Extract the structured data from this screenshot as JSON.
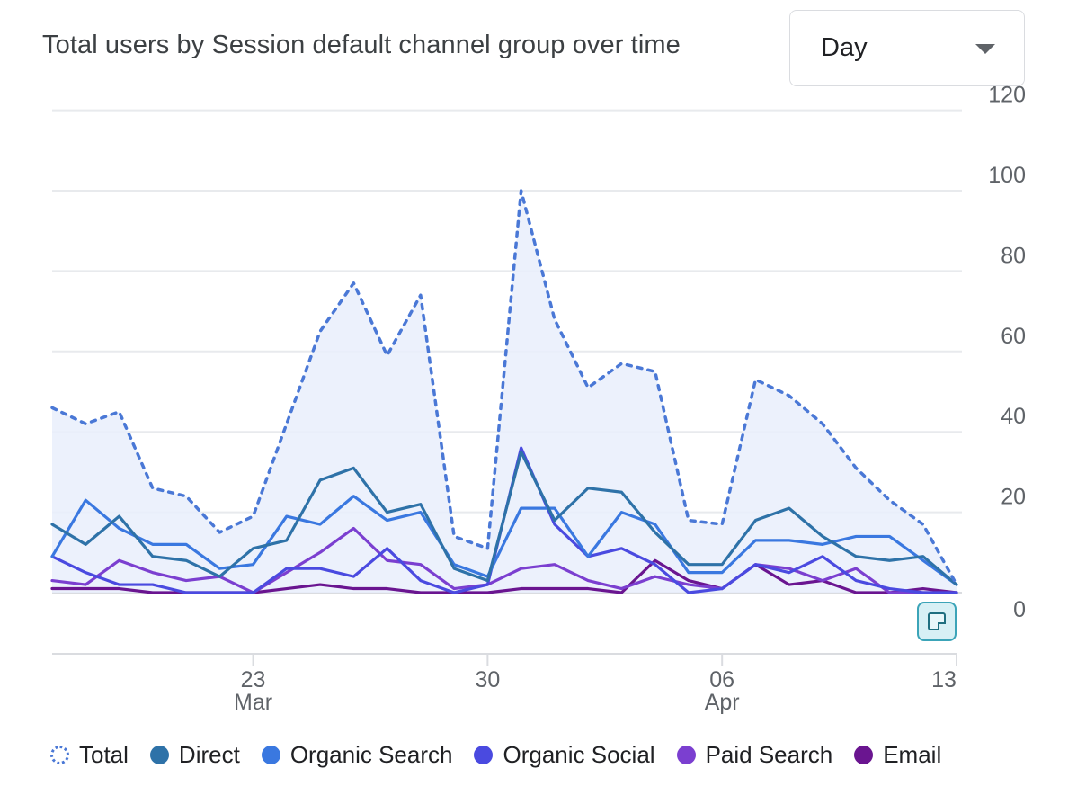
{
  "header": {
    "title": "Total users by Session default channel group over time"
  },
  "dropdown": {
    "selected": "Day"
  },
  "annotation_button": {
    "icon": "sticky-note-icon"
  },
  "legend": [
    {
      "label": "Total",
      "color": "#4a78d6",
      "style": "dotted"
    },
    {
      "label": "Direct",
      "color": "#2e72a8",
      "style": "solid"
    },
    {
      "label": "Organic Search",
      "color": "#3a78e0",
      "style": "solid"
    },
    {
      "label": "Organic Social",
      "color": "#4a4ae0",
      "style": "solid"
    },
    {
      "label": "Paid Search",
      "color": "#7b3fd0",
      "style": "solid"
    },
    {
      "label": "Email",
      "color": "#6a1590",
      "style": "solid"
    }
  ],
  "chart_data": {
    "type": "line",
    "title": "Total users by Session default channel group over time",
    "x": [
      "Mar 17",
      "Mar 18",
      "Mar 19",
      "Mar 20",
      "Mar 21",
      "Mar 22",
      "Mar 23",
      "Mar 24",
      "Mar 25",
      "Mar 26",
      "Mar 27",
      "Mar 28",
      "Mar 29",
      "Mar 30",
      "Mar 31",
      "Apr 01",
      "Apr 02",
      "Apr 03",
      "Apr 04",
      "Apr 05",
      "Apr 06",
      "Apr 07",
      "Apr 08",
      "Apr 09",
      "Apr 10",
      "Apr 11",
      "Apr 12",
      "Apr 13"
    ],
    "x_ticks": [
      {
        "index": 6,
        "day": "23",
        "month": "Mar"
      },
      {
        "index": 13,
        "day": "30",
        "month": ""
      },
      {
        "index": 20,
        "day": "06",
        "month": "Apr"
      },
      {
        "index": 27,
        "day": "13",
        "month": ""
      }
    ],
    "y_ticks": [
      0,
      20,
      40,
      60,
      80,
      100,
      120
    ],
    "ylim": [
      -15,
      120
    ],
    "y_axis_position": "right",
    "grid": true,
    "legend_position": "bottom",
    "series": [
      {
        "name": "Total",
        "style": "dotted",
        "fill": true,
        "color": "#4a78d6",
        "values": [
          46,
          42,
          45,
          26,
          24,
          15,
          19,
          42,
          65,
          77,
          59,
          74,
          14,
          11,
          100,
          68,
          51,
          57,
          55,
          18,
          17,
          53,
          49,
          42,
          31,
          23,
          17,
          2
        ]
      },
      {
        "name": "Direct",
        "color": "#2e72a8",
        "values": [
          17,
          12,
          19,
          9,
          8,
          4,
          11,
          13,
          28,
          31,
          20,
          22,
          6,
          3,
          35,
          18,
          26,
          25,
          15,
          7,
          7,
          18,
          21,
          14,
          9,
          8,
          9,
          2
        ]
      },
      {
        "name": "Organic Search",
        "color": "#3a78e0",
        "values": [
          9,
          23,
          16,
          12,
          12,
          6,
          7,
          19,
          17,
          24,
          18,
          20,
          7,
          4,
          21,
          21,
          9,
          20,
          17,
          5,
          5,
          13,
          13,
          12,
          14,
          14,
          8,
          2
        ]
      },
      {
        "name": "Organic Social",
        "color": "#4a4ae0",
        "values": [
          9,
          5,
          2,
          2,
          0,
          0,
          0,
          6,
          6,
          4,
          11,
          3,
          0,
          2,
          36,
          17,
          9,
          11,
          7,
          0,
          1,
          7,
          5,
          9,
          3,
          1,
          0,
          0
        ]
      },
      {
        "name": "Paid Search",
        "color": "#7b3fd0",
        "values": [
          3,
          2,
          8,
          5,
          3,
          4,
          0,
          5,
          10,
          16,
          8,
          7,
          1,
          2,
          6,
          7,
          3,
          1,
          4,
          2,
          1,
          7,
          6,
          3,
          6,
          0,
          0,
          0
        ]
      },
      {
        "name": "Email",
        "color": "#6a1590",
        "values": [
          1,
          1,
          1,
          0,
          0,
          0,
          0,
          1,
          2,
          1,
          1,
          0,
          0,
          0,
          1,
          1,
          1,
          0,
          8,
          3,
          1,
          7,
          2,
          3,
          0,
          0,
          1,
          0
        ]
      }
    ]
  }
}
